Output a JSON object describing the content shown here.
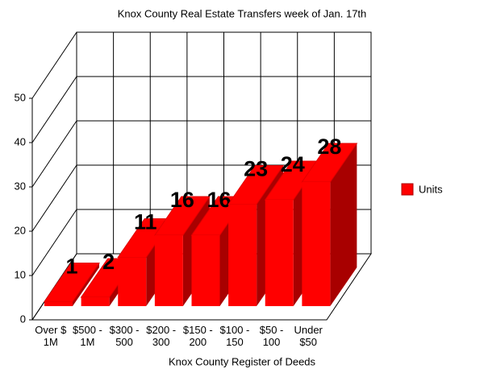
{
  "chart_data": {
    "type": "bar3d",
    "title": "Knox County Real Estate Transfers week of Jan. 17th",
    "x_label": "Knox County Register of Deeds",
    "categories": [
      "Over $\n1M",
      "$500 -\n1M",
      "$300 -\n500",
      "$200 -\n300",
      "$150 -\n200",
      "$100 -\n150",
      "$50 -\n100",
      "Under\n$50"
    ],
    "series": [
      {
        "name": "Units",
        "color": "#ff0000",
        "values": [
          1,
          2,
          11,
          16,
          16,
          23,
          24,
          28
        ]
      }
    ],
    "ylim": [
      0,
      50
    ],
    "yticks": [
      0,
      10,
      20,
      30,
      40,
      50
    ],
    "grid": true,
    "legend": "right"
  }
}
